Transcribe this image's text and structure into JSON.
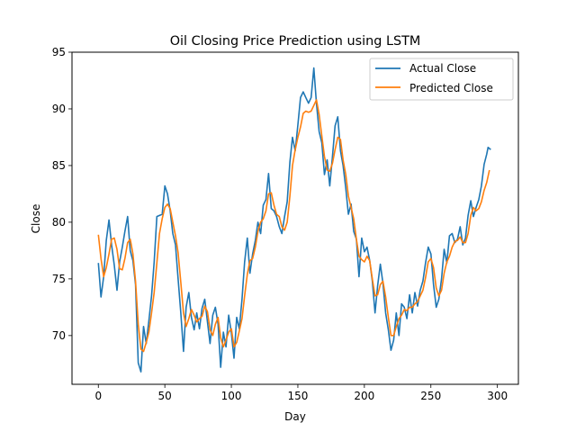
{
  "chart_data": {
    "type": "line",
    "title": "Oil Closing Price Prediction using LSTM",
    "xlabel": "Day",
    "ylabel": "Close",
    "xlim": [
      -19.8,
      315.8
    ],
    "ylim": [
      65.7,
      95.0
    ],
    "xticks": [
      0,
      50,
      100,
      150,
      200,
      250,
      300
    ],
    "yticks": [
      70,
      75,
      80,
      85,
      90,
      95
    ],
    "grid": false,
    "legend_position": "top-right",
    "series": [
      {
        "name": "Actual Close",
        "color": "#1f77b4",
        "points": [
          [
            0,
            76.4
          ],
          [
            2,
            73.4
          ],
          [
            4,
            75.2
          ],
          [
            6,
            78.4
          ],
          [
            8,
            80.2
          ],
          [
            10,
            78.0
          ],
          [
            12,
            76.2
          ],
          [
            14,
            74.0
          ],
          [
            16,
            76.5
          ],
          [
            18,
            77.8
          ],
          [
            20,
            79.2
          ],
          [
            22,
            80.5
          ],
          [
            24,
            77.5
          ],
          [
            26,
            76.6
          ],
          [
            28,
            74.5
          ],
          [
            30,
            67.6
          ],
          [
            32,
            66.8
          ],
          [
            34,
            70.8
          ],
          [
            36,
            69.3
          ],
          [
            38,
            71.3
          ],
          [
            40,
            73.5
          ],
          [
            42,
            76.5
          ],
          [
            44,
            80.5
          ],
          [
            46,
            80.6
          ],
          [
            48,
            80.7
          ],
          [
            50,
            83.2
          ],
          [
            52,
            82.5
          ],
          [
            54,
            81.0
          ],
          [
            56,
            79.0
          ],
          [
            58,
            78.0
          ],
          [
            60,
            75.0
          ],
          [
            62,
            72.0
          ],
          [
            64,
            68.6
          ],
          [
            66,
            72.5
          ],
          [
            68,
            73.8
          ],
          [
            70,
            71.6
          ],
          [
            72,
            70.5
          ],
          [
            74,
            72.0
          ],
          [
            76,
            70.6
          ],
          [
            78,
            72.4
          ],
          [
            80,
            73.2
          ],
          [
            82,
            71.2
          ],
          [
            84,
            69.3
          ],
          [
            86,
            71.8
          ],
          [
            88,
            72.5
          ],
          [
            90,
            71.0
          ],
          [
            92,
            67.2
          ],
          [
            94,
            70.3
          ],
          [
            96,
            69.0
          ],
          [
            98,
            71.8
          ],
          [
            100,
            70.2
          ],
          [
            102,
            68.0
          ],
          [
            104,
            71.6
          ],
          [
            106,
            70.6
          ],
          [
            108,
            73.2
          ],
          [
            110,
            76.5
          ],
          [
            112,
            78.6
          ],
          [
            114,
            75.5
          ],
          [
            116,
            77.2
          ],
          [
            118,
            78.4
          ],
          [
            120,
            80.0
          ],
          [
            122,
            79.0
          ],
          [
            124,
            81.5
          ],
          [
            126,
            82.0
          ],
          [
            128,
            84.3
          ],
          [
            130,
            81.2
          ],
          [
            132,
            81.0
          ],
          [
            134,
            80.5
          ],
          [
            136,
            79.6
          ],
          [
            138,
            79.0
          ],
          [
            140,
            80.5
          ],
          [
            142,
            81.8
          ],
          [
            144,
            85.3
          ],
          [
            146,
            87.5
          ],
          [
            148,
            86.3
          ],
          [
            150,
            88.6
          ],
          [
            152,
            91.0
          ],
          [
            154,
            91.5
          ],
          [
            156,
            91.0
          ],
          [
            158,
            90.5
          ],
          [
            160,
            91.0
          ],
          [
            162,
            93.6
          ],
          [
            164,
            90.5
          ],
          [
            166,
            88.0
          ],
          [
            168,
            87.0
          ],
          [
            170,
            84.2
          ],
          [
            172,
            85.5
          ],
          [
            174,
            83.2
          ],
          [
            176,
            85.8
          ],
          [
            178,
            88.5
          ],
          [
            180,
            89.3
          ],
          [
            182,
            86.3
          ],
          [
            184,
            85.0
          ],
          [
            186,
            83.0
          ],
          [
            188,
            80.7
          ],
          [
            190,
            81.6
          ],
          [
            192,
            79.2
          ],
          [
            194,
            78.5
          ],
          [
            196,
            75.2
          ],
          [
            198,
            78.6
          ],
          [
            200,
            77.4
          ],
          [
            202,
            77.8
          ],
          [
            204,
            76.6
          ],
          [
            206,
            74.8
          ],
          [
            208,
            72.0
          ],
          [
            210,
            74.4
          ],
          [
            212,
            76.3
          ],
          [
            214,
            74.6
          ],
          [
            216,
            72.0
          ],
          [
            218,
            70.5
          ],
          [
            220,
            68.7
          ],
          [
            222,
            69.6
          ],
          [
            224,
            72.0
          ],
          [
            226,
            70.0
          ],
          [
            228,
            72.8
          ],
          [
            230,
            72.5
          ],
          [
            232,
            71.5
          ],
          [
            234,
            73.6
          ],
          [
            236,
            72.0
          ],
          [
            238,
            73.8
          ],
          [
            240,
            72.6
          ],
          [
            242,
            74.0
          ],
          [
            244,
            74.8
          ],
          [
            246,
            76.4
          ],
          [
            248,
            77.8
          ],
          [
            250,
            77.2
          ],
          [
            252,
            74.5
          ],
          [
            254,
            72.5
          ],
          [
            256,
            73.2
          ],
          [
            258,
            75.0
          ],
          [
            260,
            77.6
          ],
          [
            262,
            76.4
          ],
          [
            264,
            78.8
          ],
          [
            266,
            79.0
          ],
          [
            268,
            78.2
          ],
          [
            270,
            78.5
          ],
          [
            272,
            79.6
          ],
          [
            274,
            78.0
          ],
          [
            276,
            78.6
          ],
          [
            278,
            80.6
          ],
          [
            280,
            81.9
          ],
          [
            282,
            80.5
          ],
          [
            284,
            81.3
          ],
          [
            286,
            82.0
          ],
          [
            288,
            83.2
          ],
          [
            290,
            85.1
          ],
          [
            292,
            86.0
          ],
          [
            293,
            86.6
          ],
          [
            295,
            86.4
          ]
        ]
      },
      {
        "name": "Predicted Close",
        "color": "#ff7f0e",
        "points": [
          [
            0,
            78.9
          ],
          [
            2,
            76.8
          ],
          [
            4,
            75.2
          ],
          [
            6,
            76.0
          ],
          [
            8,
            77.2
          ],
          [
            10,
            78.5
          ],
          [
            12,
            78.6
          ],
          [
            14,
            77.6
          ],
          [
            16,
            75.9
          ],
          [
            18,
            75.8
          ],
          [
            20,
            76.8
          ],
          [
            22,
            78.2
          ],
          [
            24,
            78.5
          ],
          [
            26,
            77.2
          ],
          [
            28,
            74.8
          ],
          [
            30,
            71.0
          ],
          [
            32,
            68.8
          ],
          [
            34,
            68.6
          ],
          [
            36,
            69.4
          ],
          [
            38,
            70.3
          ],
          [
            40,
            72.0
          ],
          [
            42,
            73.8
          ],
          [
            44,
            76.4
          ],
          [
            46,
            79.0
          ],
          [
            48,
            80.3
          ],
          [
            50,
            81.3
          ],
          [
            52,
            81.6
          ],
          [
            54,
            81.2
          ],
          [
            56,
            80.0
          ],
          [
            58,
            78.8
          ],
          [
            60,
            77.3
          ],
          [
            62,
            74.7
          ],
          [
            64,
            72.0
          ],
          [
            66,
            70.8
          ],
          [
            68,
            71.5
          ],
          [
            70,
            72.3
          ],
          [
            72,
            71.8
          ],
          [
            74,
            71.2
          ],
          [
            76,
            71.5
          ],
          [
            78,
            71.7
          ],
          [
            80,
            72.6
          ],
          [
            82,
            72.1
          ],
          [
            84,
            70.5
          ],
          [
            86,
            70.0
          ],
          [
            88,
            71.0
          ],
          [
            90,
            71.6
          ],
          [
            92,
            69.8
          ],
          [
            94,
            69.0
          ],
          [
            96,
            69.6
          ],
          [
            98,
            70.3
          ],
          [
            100,
            70.6
          ],
          [
            102,
            69.0
          ],
          [
            104,
            69.4
          ],
          [
            106,
            70.4
          ],
          [
            108,
            71.5
          ],
          [
            110,
            73.5
          ],
          [
            112,
            75.4
          ],
          [
            114,
            76.6
          ],
          [
            116,
            76.8
          ],
          [
            118,
            77.8
          ],
          [
            120,
            79.2
          ],
          [
            122,
            80.0
          ],
          [
            124,
            80.3
          ],
          [
            126,
            81.0
          ],
          [
            128,
            82.5
          ],
          [
            130,
            82.6
          ],
          [
            132,
            81.5
          ],
          [
            134,
            80.7
          ],
          [
            136,
            80.5
          ],
          [
            138,
            79.6
          ],
          [
            140,
            79.3
          ],
          [
            142,
            80.0
          ],
          [
            144,
            82.3
          ],
          [
            146,
            85.0
          ],
          [
            148,
            86.4
          ],
          [
            150,
            87.5
          ],
          [
            152,
            88.4
          ],
          [
            154,
            89.6
          ],
          [
            156,
            89.8
          ],
          [
            158,
            89.7
          ],
          [
            160,
            89.8
          ],
          [
            162,
            90.3
          ],
          [
            164,
            90.8
          ],
          [
            166,
            89.5
          ],
          [
            168,
            87.6
          ],
          [
            170,
            85.8
          ],
          [
            172,
            84.6
          ],
          [
            174,
            84.5
          ],
          [
            176,
            85.2
          ],
          [
            178,
            86.4
          ],
          [
            180,
            87.5
          ],
          [
            182,
            87.3
          ],
          [
            184,
            85.5
          ],
          [
            186,
            84.2
          ],
          [
            188,
            82.3
          ],
          [
            190,
            81.3
          ],
          [
            192,
            80.3
          ],
          [
            194,
            78.5
          ],
          [
            196,
            77.0
          ],
          [
            198,
            76.7
          ],
          [
            200,
            76.5
          ],
          [
            202,
            77.0
          ],
          [
            204,
            76.6
          ],
          [
            206,
            75.0
          ],
          [
            208,
            73.5
          ],
          [
            210,
            73.6
          ],
          [
            212,
            74.5
          ],
          [
            214,
            74.8
          ],
          [
            216,
            73.4
          ],
          [
            218,
            71.6
          ],
          [
            220,
            70.0
          ],
          [
            222,
            70.0
          ],
          [
            224,
            70.8
          ],
          [
            226,
            71.5
          ],
          [
            228,
            71.8
          ],
          [
            230,
            72.3
          ],
          [
            232,
            72.2
          ],
          [
            234,
            72.5
          ],
          [
            236,
            72.5
          ],
          [
            238,
            72.8
          ],
          [
            240,
            73.0
          ],
          [
            242,
            73.5
          ],
          [
            244,
            74.0
          ],
          [
            246,
            75.1
          ],
          [
            248,
            76.5
          ],
          [
            250,
            76.8
          ],
          [
            252,
            76.0
          ],
          [
            254,
            74.2
          ],
          [
            256,
            73.5
          ],
          [
            258,
            74.0
          ],
          [
            260,
            75.5
          ],
          [
            262,
            76.5
          ],
          [
            264,
            77.0
          ],
          [
            266,
            77.8
          ],
          [
            268,
            78.3
          ],
          [
            270,
            78.4
          ],
          [
            272,
            78.7
          ],
          [
            274,
            78.2
          ],
          [
            276,
            78.2
          ],
          [
            278,
            79.0
          ],
          [
            280,
            80.6
          ],
          [
            282,
            81.3
          ],
          [
            284,
            81.0
          ],
          [
            286,
            81.2
          ],
          [
            288,
            81.8
          ],
          [
            290,
            82.8
          ],
          [
            292,
            83.5
          ],
          [
            294,
            84.6
          ]
        ]
      }
    ]
  }
}
